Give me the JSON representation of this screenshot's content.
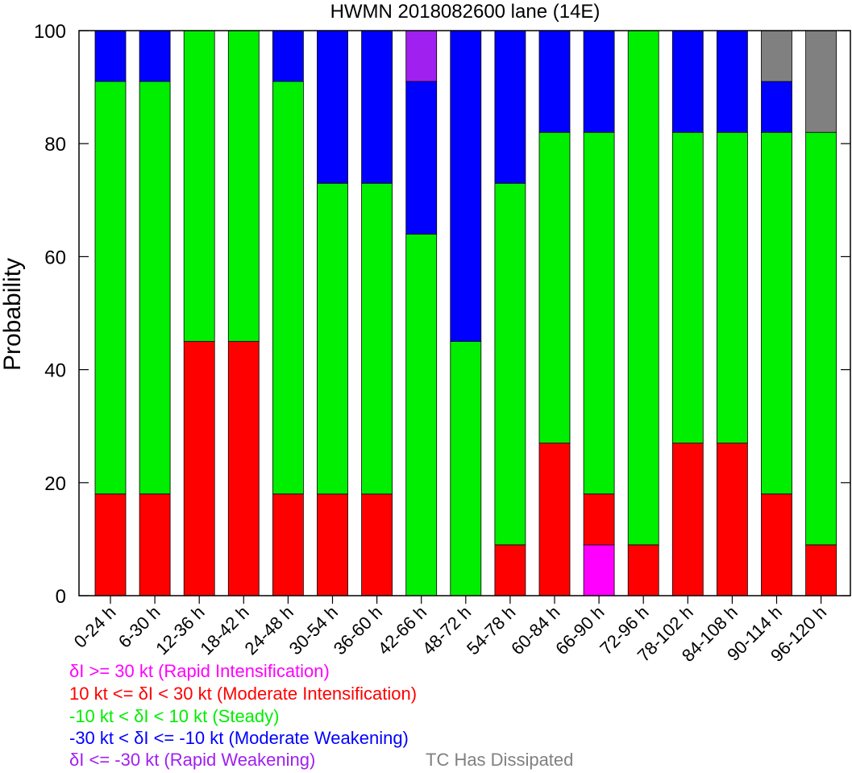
{
  "chart_data": {
    "type": "bar",
    "stacked": true,
    "title": "HWMN 2018082600 lane (14E)",
    "ylabel": "Probability",
    "ylim": [
      0,
      100
    ],
    "yticks": [
      0,
      20,
      40,
      60,
      80,
      100
    ],
    "categories": [
      "0-24 h",
      "6-30 h",
      "12-36 h",
      "18-42 h",
      "24-48 h",
      "30-54 h",
      "36-60 h",
      "42-66 h",
      "48-72 h",
      "54-78 h",
      "60-84 h",
      "66-90 h",
      "72-96 h",
      "78-102 h",
      "84-108 h",
      "90-114 h",
      "96-120 h"
    ],
    "series": [
      {
        "name": "δI >= 30 kt (Rapid Intensification)",
        "color": "#ff00ff",
        "values": [
          0,
          0,
          0,
          0,
          0,
          0,
          0,
          0,
          0,
          0,
          0,
          9,
          0,
          0,
          0,
          0,
          0
        ]
      },
      {
        "name": "10 kt <= δI < 30 kt (Moderate Intensification)",
        "color": "#ff0000",
        "values": [
          18,
          18,
          45,
          45,
          18,
          18,
          18,
          0,
          0,
          9,
          27,
          9,
          9,
          27,
          27,
          18,
          9
        ]
      },
      {
        "name": "-10 kt < δI < 10 kt (Steady)",
        "color": "#00ee00",
        "values": [
          73,
          73,
          55,
          55,
          73,
          55,
          55,
          64,
          45,
          64,
          55,
          64,
          91,
          55,
          55,
          64,
          73
        ]
      },
      {
        "name": "-30 kt < δI <= -10 kt (Moderate Weakening)",
        "color": "#0000ff",
        "values": [
          9,
          9,
          0,
          0,
          9,
          27,
          27,
          27,
          55,
          27,
          18,
          18,
          0,
          18,
          18,
          9,
          0
        ]
      },
      {
        "name": "δI <= -30 kt (Rapid Weakening)",
        "color": "#a020f0",
        "values": [
          0,
          0,
          0,
          0,
          0,
          0,
          0,
          9,
          0,
          0,
          0,
          0,
          0,
          0,
          0,
          0,
          0
        ]
      },
      {
        "name": "TC Has Dissipated",
        "color": "#808080",
        "values": [
          0,
          0,
          0,
          0,
          0,
          0,
          0,
          0,
          0,
          0,
          0,
          0,
          0,
          0,
          0,
          9,
          18
        ]
      }
    ]
  }
}
